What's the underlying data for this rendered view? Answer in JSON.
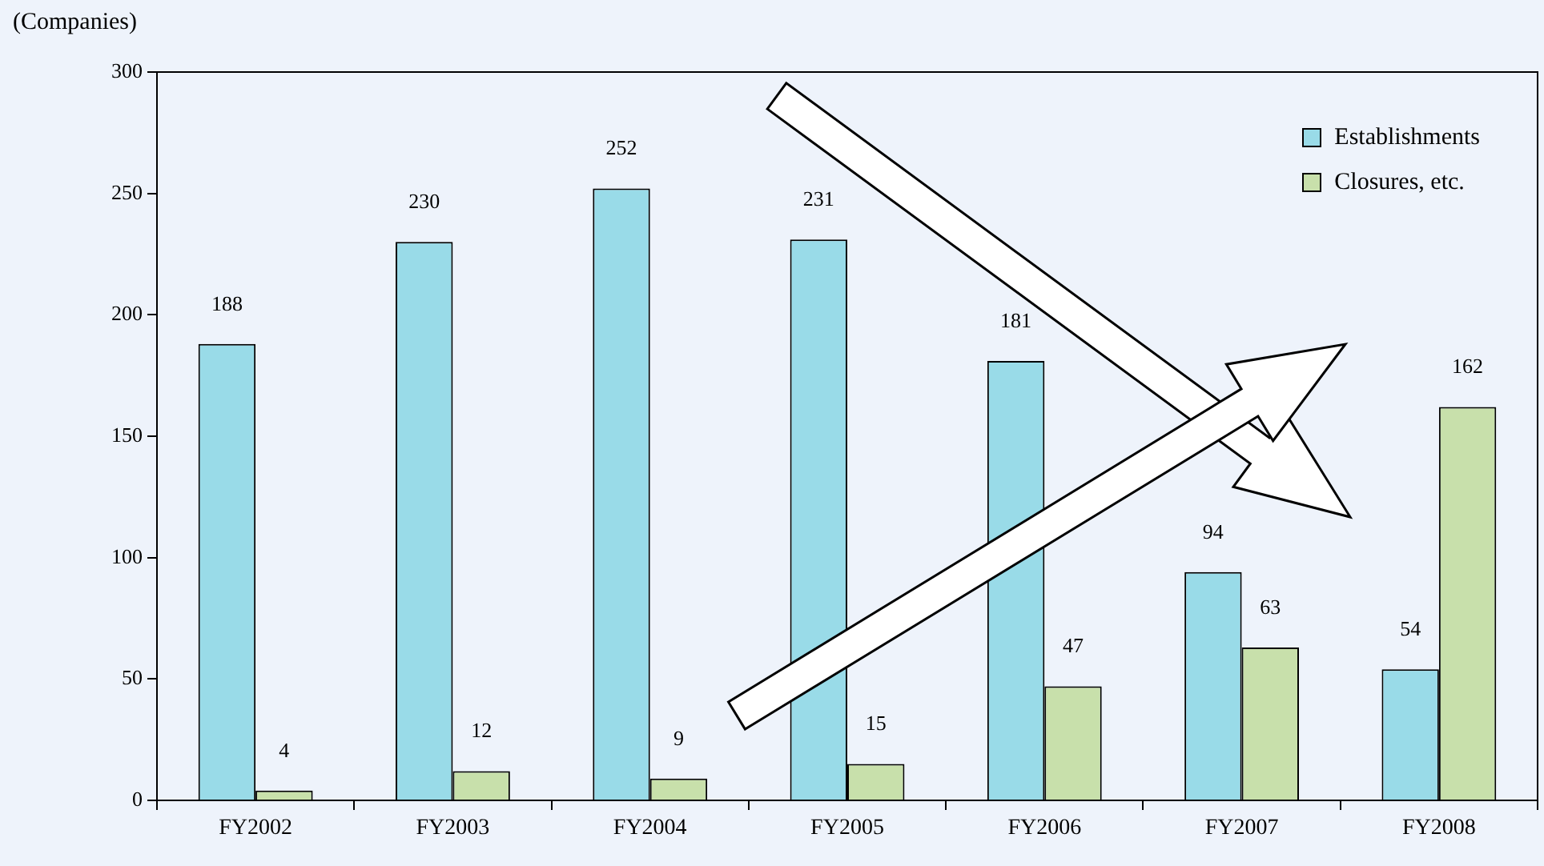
{
  "chart_data": {
    "type": "bar",
    "ylabel": "(Companies)",
    "categories": [
      "FY2002",
      "FY2003",
      "FY2004",
      "FY2005",
      "FY2006",
      "FY2007",
      "FY2008"
    ],
    "series": [
      {
        "name": "Establishments",
        "color": "#99dbe8",
        "values": [
          188,
          230,
          252,
          231,
          181,
          94,
          54
        ]
      },
      {
        "name": "Closures, etc.",
        "color": "#c8e0ab",
        "values": [
          4,
          12,
          9,
          15,
          47,
          63,
          162
        ]
      }
    ],
    "ylim": [
      0,
      300
    ],
    "yticks": [
      0,
      50,
      100,
      150,
      200,
      250,
      300
    ],
    "grid": false,
    "legend": "top right",
    "data_labels": true
  }
}
